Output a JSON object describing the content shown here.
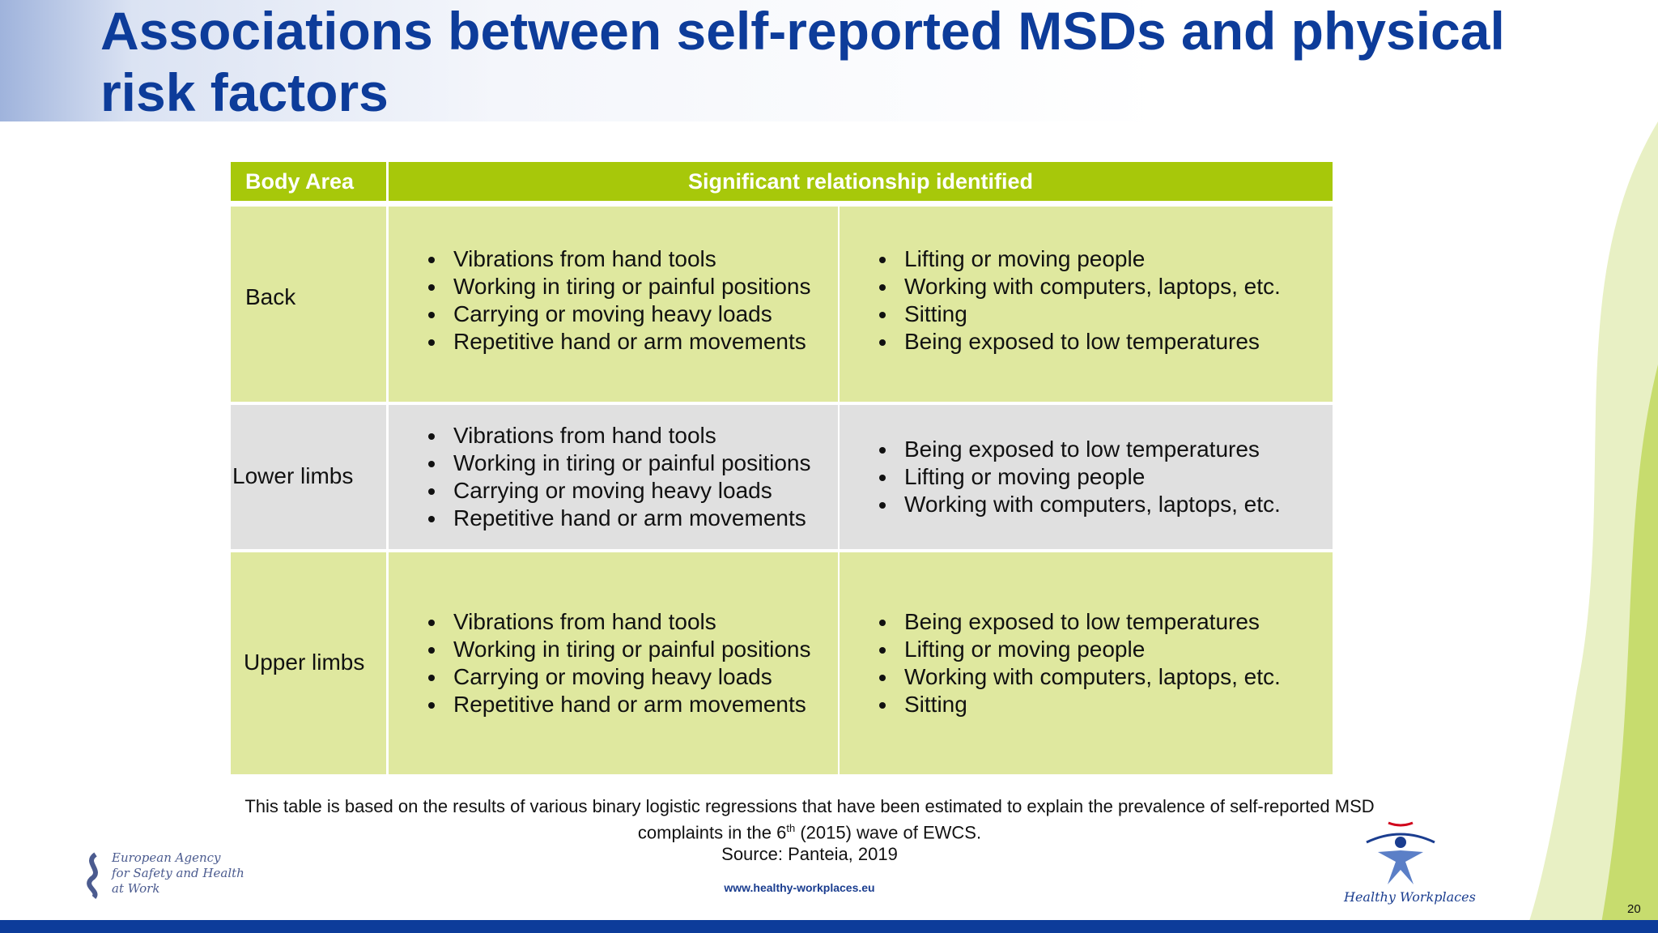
{
  "header": {
    "title": "Associations between self-reported MSDs and physical risk factors"
  },
  "table": {
    "headers": [
      "Body Area",
      "Significant relationship identified"
    ],
    "rows": [
      {
        "body_area": "Back",
        "col1": [
          "Vibrations from hand tools",
          "Working in tiring or painful positions",
          "Carrying or moving heavy loads",
          "Repetitive hand or arm movements"
        ],
        "col2": [
          "Lifting or moving people",
          "Working with computers, laptops, etc.",
          "Sitting",
          "Being exposed to low temperatures"
        ]
      },
      {
        "body_area": "Lower limbs",
        "col1": [
          "Vibrations from hand tools",
          "Working in tiring or painful positions",
          "Carrying or moving heavy loads",
          "Repetitive hand or arm movements"
        ],
        "col2": [
          "Being exposed to low temperatures",
          "Lifting or moving people",
          "Working with computers, laptops, etc."
        ]
      },
      {
        "body_area": "Upper limbs",
        "col1": [
          "Vibrations from hand tools",
          "Working in tiring or painful positions",
          "Carrying or moving heavy loads",
          "Repetitive hand or arm movements"
        ],
        "col2": [
          "Being exposed to low temperatures",
          "Lifting or moving people",
          "Working with computers, laptops, etc.",
          "Sitting"
        ]
      }
    ]
  },
  "note": {
    "line1": "This table is based on the results of various binary logistic regressions that have been estimated to explain the prevalence of self-reported MSD",
    "line2_before": "complaints in the 6",
    "line2_sup": "th",
    "line2_after": " (2015) wave of EWCS.",
    "source": "Source: Panteia, 2019"
  },
  "footer": {
    "url": "www.healthy-workplaces.eu",
    "agency": [
      "European Agency",
      "for Safety and Health",
      "at Work"
    ],
    "campaign": "Healthy Workplaces",
    "page": "20"
  }
}
